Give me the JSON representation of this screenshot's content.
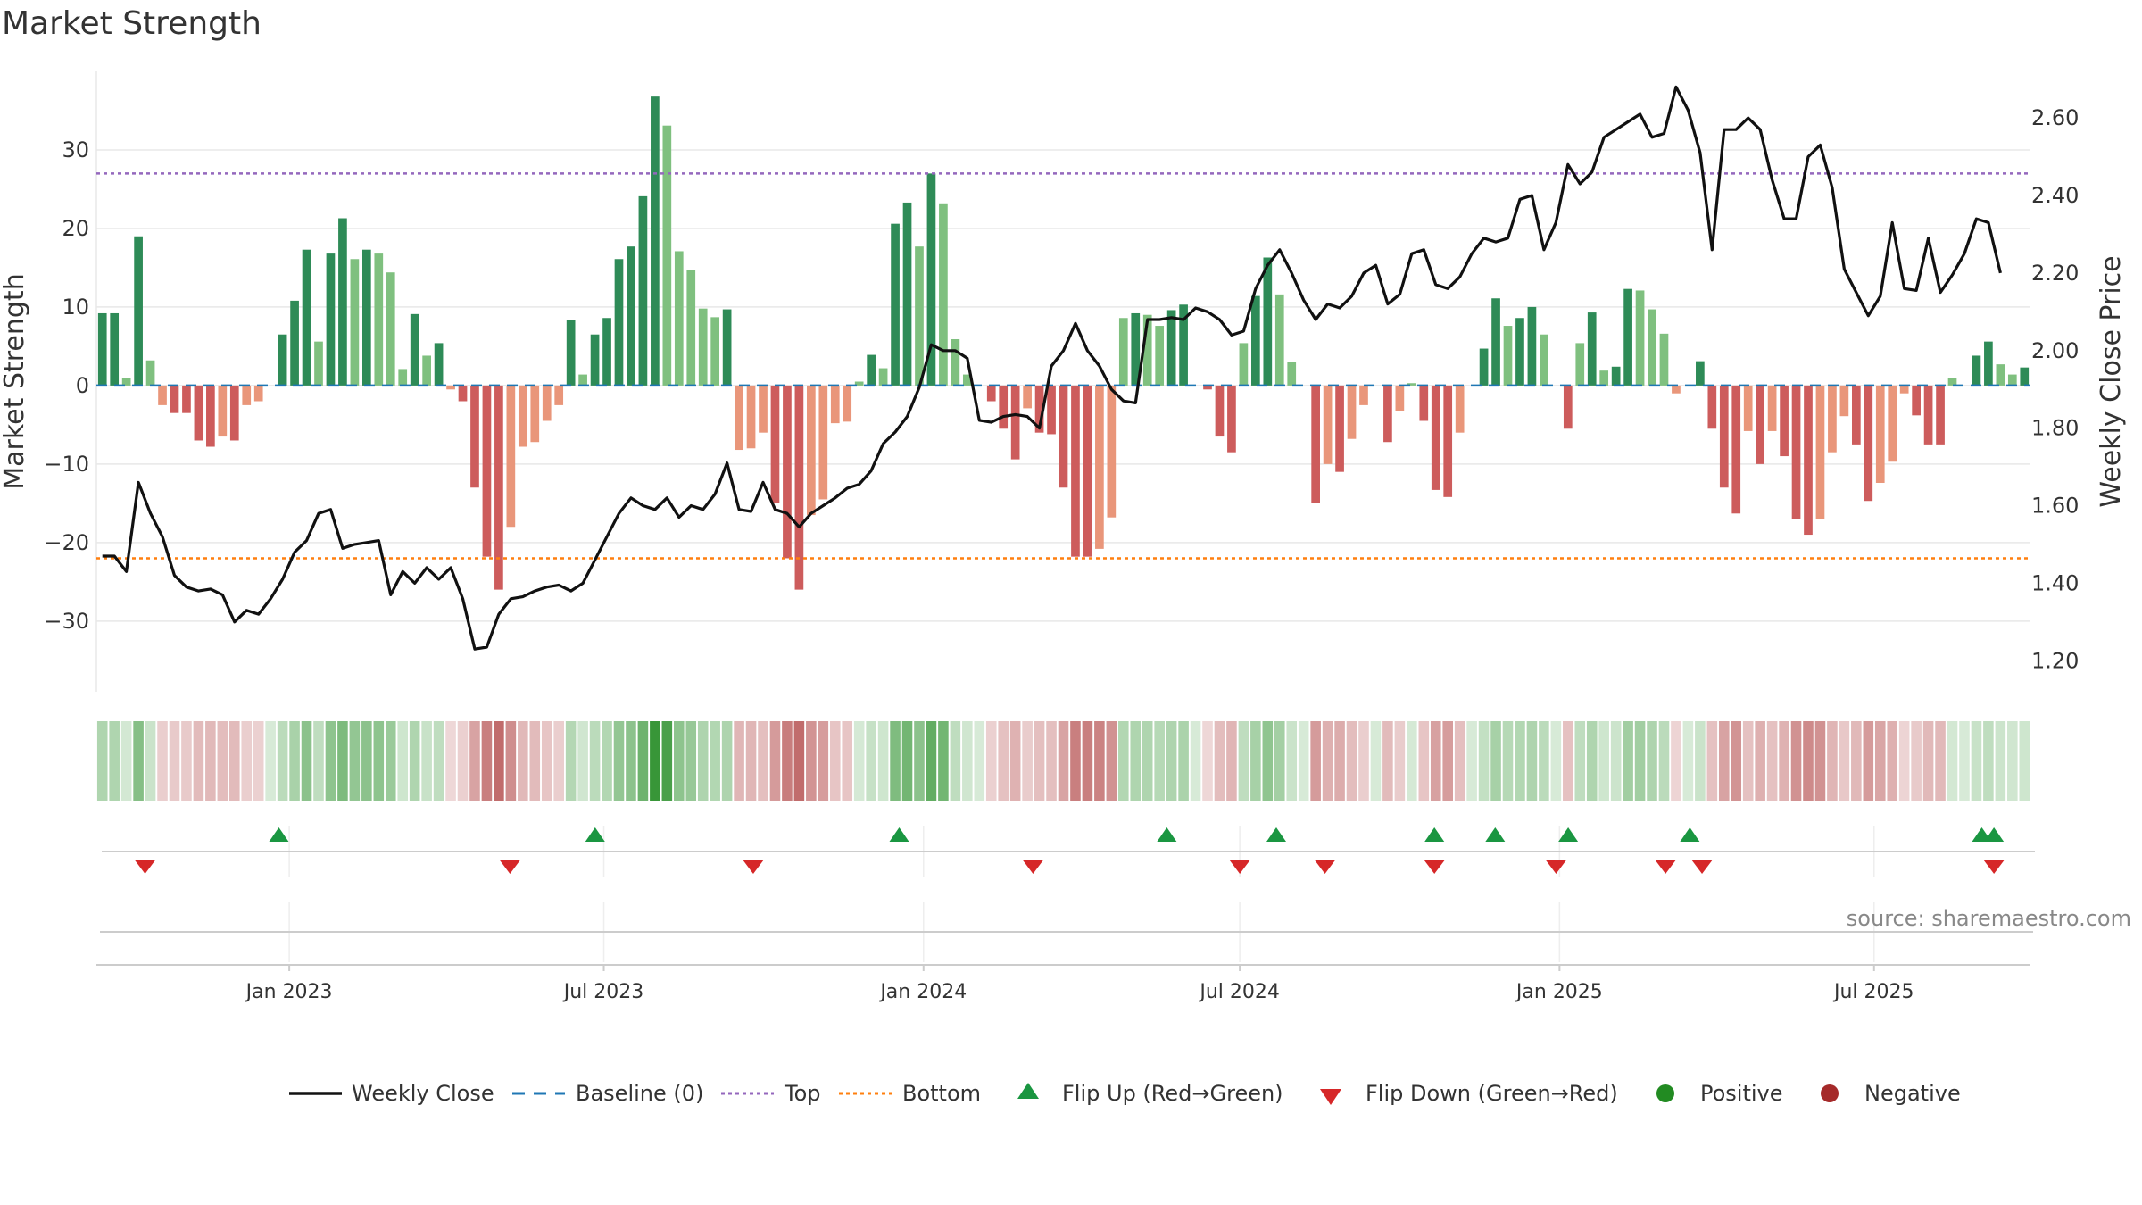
{
  "chart_data": {
    "type": "bar",
    "title": "Market Strength",
    "source": "source: sharemaestro.com",
    "ylabel": "Market Strength",
    "y2label": "Weekly Close Price",
    "ylim": [
      -39,
      40
    ],
    "y2lim": [
      1.12,
      2.72
    ],
    "yticks": [
      30,
      20,
      10,
      0,
      -10,
      -20,
      -30
    ],
    "ytick_labels": [
      "30",
      "20",
      "10",
      "0",
      "−10",
      "−20",
      "−30"
    ],
    "y2ticks": [
      2.6,
      2.4,
      2.2,
      2.0,
      1.8,
      1.6,
      1.4,
      1.2
    ],
    "y2tick_labels": [
      "2.60",
      "2.40",
      "2.20",
      "2.00",
      "1.80",
      "1.60",
      "1.40",
      "1.20"
    ],
    "x_start": "2022-09-12",
    "x_end": "2025-09-29",
    "xticks": [
      "2023-01-01",
      "2023-07-01",
      "2024-01-01",
      "2024-07-01",
      "2025-01-01",
      "2025-07-01"
    ],
    "xtick_labels": [
      "Jan 2023",
      "Jul 2023",
      "Jan 2024",
      "Jul 2024",
      "Jan 2025",
      "Jul 2025"
    ],
    "thresholds": {
      "top": 27,
      "bottom": -22,
      "baseline": 0
    },
    "grid": true,
    "legend_position": "bottom",
    "series": [
      {
        "name": "Market Strength",
        "values": [
          9.2,
          9.2,
          1.0,
          19.0,
          3.2,
          -2.5,
          -3.5,
          -3.5,
          -7.0,
          -7.8,
          -6.5,
          -7.0,
          -2.5,
          -2.0,
          0,
          6.5,
          10.8,
          17.3,
          5.6,
          16.8,
          21.3,
          16.1,
          17.3,
          16.8,
          14.4,
          2.1,
          9.1,
          3.8,
          5.4,
          -0.5,
          -2.0,
          -13.0,
          -21.8,
          -26.0,
          -18.0,
          -7.8,
          -7.2,
          -4.5,
          -2.5,
          8.3,
          1.4,
          6.5,
          8.6,
          16.1,
          17.7,
          24.1,
          36.8,
          33.1,
          17.1,
          14.7,
          9.8,
          8.7,
          9.7,
          -8.2,
          -8.0,
          -6.0,
          -15.0,
          -22.0,
          -26.0,
          -16.5,
          -14.5,
          -4.8,
          -4.6,
          0.5,
          3.9,
          2.2,
          20.6,
          23.3,
          17.7,
          27.0,
          23.2,
          5.9,
          1.4,
          0,
          -2.0,
          -5.5,
          -9.4,
          -2.9,
          -6.0,
          -6.2,
          -13.0,
          -21.8,
          -21.8,
          -20.8,
          -16.8,
          8.6,
          9.2,
          9.0,
          7.6,
          9.6,
          10.3,
          0,
          -0.5,
          -6.5,
          -8.5,
          5.4,
          11.4,
          16.3,
          11.6,
          3.0,
          0,
          -15.0,
          -10.0,
          -11.0,
          -6.8,
          -2.5,
          0,
          -7.2,
          -3.2,
          0.3,
          -4.5,
          -13.3,
          -14.2,
          -6.0,
          0,
          4.7,
          11.1,
          7.6,
          8.6,
          10.0,
          6.5,
          0,
          -5.5,
          5.4,
          9.3,
          1.9,
          2.4,
          12.3,
          12.1,
          9.7,
          6.6,
          -1.0,
          0,
          3.1,
          -5.5,
          -13.0,
          -16.3,
          -5.8,
          -10.0,
          -5.8,
          -9.0,
          -17.0,
          -19.0,
          -17.0,
          -8.5,
          -3.9,
          -7.5,
          -14.7,
          -12.4,
          -9.7,
          -1.0,
          -3.8,
          -7.5,
          -7.5,
          1.0,
          0,
          3.8,
          5.6,
          2.7,
          1.4,
          2.3
        ]
      },
      {
        "name": "Weekly Close",
        "values": [
          1.47,
          1.47,
          1.43,
          1.66,
          1.58,
          1.52,
          1.42,
          1.39,
          1.38,
          1.385,
          1.37,
          1.3,
          1.33,
          1.32,
          1.36,
          1.41,
          1.48,
          1.51,
          1.58,
          1.59,
          1.49,
          1.5,
          1.505,
          1.51,
          1.37,
          1.43,
          1.4,
          1.44,
          1.41,
          1.44,
          1.36,
          1.23,
          1.235,
          1.32,
          1.36,
          1.365,
          1.38,
          1.39,
          1.395,
          1.38,
          1.4,
          1.46,
          1.52,
          1.58,
          1.62,
          1.6,
          1.59,
          1.62,
          1.57,
          1.6,
          1.59,
          1.63,
          1.71,
          1.59,
          1.585,
          1.66,
          1.59,
          1.58,
          1.545,
          1.58,
          1.6,
          1.62,
          1.645,
          1.655,
          1.69,
          1.76,
          1.79,
          1.83,
          1.905,
          2.015,
          2.0,
          2.0,
          1.98,
          1.82,
          1.815,
          1.83,
          1.835,
          1.83,
          1.8,
          1.96,
          2.0,
          2.07,
          2.0,
          1.96,
          1.9,
          1.87,
          1.865,
          2.08,
          2.08,
          2.085,
          2.08,
          2.11,
          2.1,
          2.08,
          2.04,
          2.05,
          2.16,
          2.22,
          2.26,
          2.2,
          2.13,
          2.08,
          2.12,
          2.11,
          2.14,
          2.2,
          2.22,
          2.12,
          2.145,
          2.25,
          2.26,
          2.17,
          2.16,
          2.19,
          2.25,
          2.29,
          2.28,
          2.29,
          2.39,
          2.4,
          2.26,
          2.33,
          2.48,
          2.43,
          2.46,
          2.55,
          2.57,
          2.59,
          2.61,
          2.55,
          2.56,
          2.68,
          2.62,
          2.51,
          2.26,
          2.57,
          2.57,
          2.6,
          2.57,
          2.44,
          2.34,
          2.34,
          2.5,
          2.53,
          2.42,
          2.21,
          2.15,
          2.09,
          2.14,
          2.33,
          2.16,
          2.155,
          2.29,
          2.15,
          2.195,
          2.25,
          2.34,
          2.33,
          2.2
        ]
      }
    ],
    "flip_up": [
      "2022-12-26",
      "2023-06-26",
      "2023-12-18",
      "2024-05-20",
      "2024-07-22",
      "2024-10-21",
      "2024-11-25",
      "2025-01-06",
      "2025-03-17",
      "2025-09-01",
      "2025-09-08"
    ],
    "flip_down": [
      "2022-10-10",
      "2023-05-08",
      "2023-09-25",
      "2024-03-04",
      "2024-07-01",
      "2024-08-19",
      "2024-10-21",
      "2024-12-30",
      "2025-03-03",
      "2025-03-24",
      "2025-09-08"
    ],
    "legend": [
      "Weekly Close",
      "Baseline (0)",
      "Top",
      "Bottom",
      "Flip Up (Red→Green)",
      "Flip Down (Green→Red)",
      "Positive",
      "Negative"
    ]
  },
  "colors": {
    "pos_strong": "#2e8b57",
    "pos_light": "#7fc07f",
    "neg_strong": "#cd5c5c",
    "neg_light": "#e9967a",
    "line": "#111111",
    "baseline": "#1f77b4",
    "top": "#9467bd",
    "bottom": "#ff7f0e",
    "flip_up": "#1a9641",
    "flip_down": "#d62728",
    "positive_dot": "#228b22",
    "negative_dot": "#a52a2a",
    "grid": "#e8e8e8"
  }
}
